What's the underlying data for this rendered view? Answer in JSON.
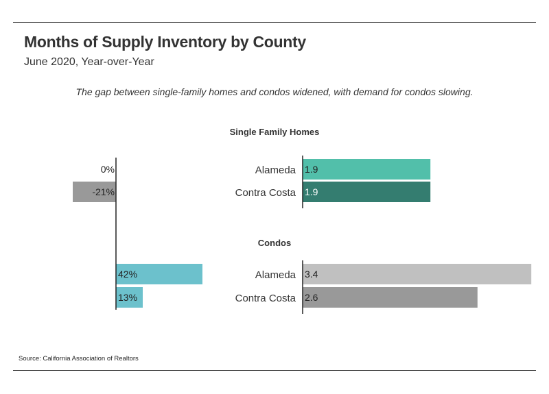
{
  "header": {
    "title": "Months of Supply Inventory by County",
    "subtitle": "June 2020, Year-over-Year",
    "note": "The gap between single-family homes and condos widened, with demand for condos slowing."
  },
  "footer": {
    "source": "Source:  California Association of Realtors"
  },
  "colors": {
    "sf_alameda": "#52bfaa",
    "sf_contra_costa": "#347d70",
    "condo_alameda": "#c0c0c0",
    "condo_contra_costa": "#999999",
    "yoy_positive": "#6cc1cc",
    "yoy_negative": "#999999",
    "axis": "#222222"
  },
  "chart_data": [
    {
      "type": "bar",
      "orientation": "horizontal",
      "panel": "months-of-supply",
      "groups": [
        {
          "title": "Single Family Homes",
          "categories": [
            "Alameda",
            "Contra Costa"
          ],
          "values": [
            1.9,
            1.9
          ],
          "labels": [
            "1.9",
            "1.9"
          ]
        },
        {
          "title": "Condos",
          "categories": [
            "Alameda",
            "Contra Costa"
          ],
          "values": [
            3.4,
            2.6
          ],
          "labels": [
            "3.4",
            "2.6"
          ]
        }
      ]
    },
    {
      "type": "bar",
      "orientation": "horizontal",
      "panel": "year-over-year-change",
      "unit": "%",
      "groups": [
        {
          "title": "Single Family Homes",
          "categories": [
            "Alameda",
            "Contra Costa"
          ],
          "values": [
            0,
            -21
          ],
          "labels": [
            "0%",
            "-21%"
          ]
        },
        {
          "title": "Condos",
          "categories": [
            "Alameda",
            "Contra Costa"
          ],
          "values": [
            42,
            13
          ],
          "labels": [
            "42%",
            "13%"
          ]
        }
      ]
    }
  ]
}
